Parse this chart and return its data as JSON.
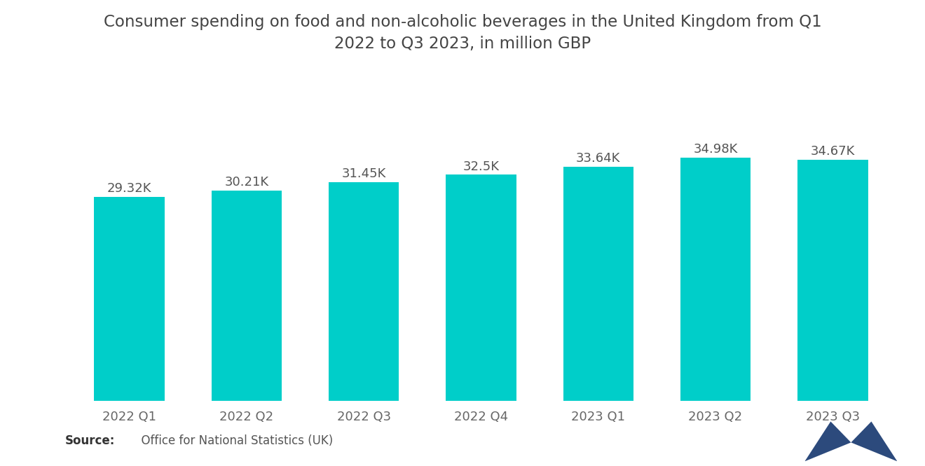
{
  "title": "Consumer spending on food and non-alcoholic beverages in the United Kingdom from Q1\n2022 to Q3 2023, in million GBP",
  "categories": [
    "2022 Q1",
    "2022 Q2",
    "2022 Q3",
    "2022 Q4",
    "2023 Q1",
    "2023 Q2",
    "2023 Q3"
  ],
  "values": [
    29320,
    30210,
    31450,
    32500,
    33640,
    34980,
    34670
  ],
  "labels": [
    "29.32K",
    "30.21K",
    "31.45K",
    "32.5K",
    "33.64K",
    "34.98K",
    "34.67K"
  ],
  "bar_color": "#00CEC9",
  "background_color": "#ffffff",
  "title_color": "#444444",
  "label_color": "#555555",
  "tick_color": "#666666",
  "ylim_min": 0,
  "ylim_max": 37500,
  "title_fontsize": 16.5,
  "label_fontsize": 13,
  "tick_fontsize": 13,
  "source_fontsize": 12,
  "bar_width": 0.6,
  "logo_color": "#2c4a7c"
}
